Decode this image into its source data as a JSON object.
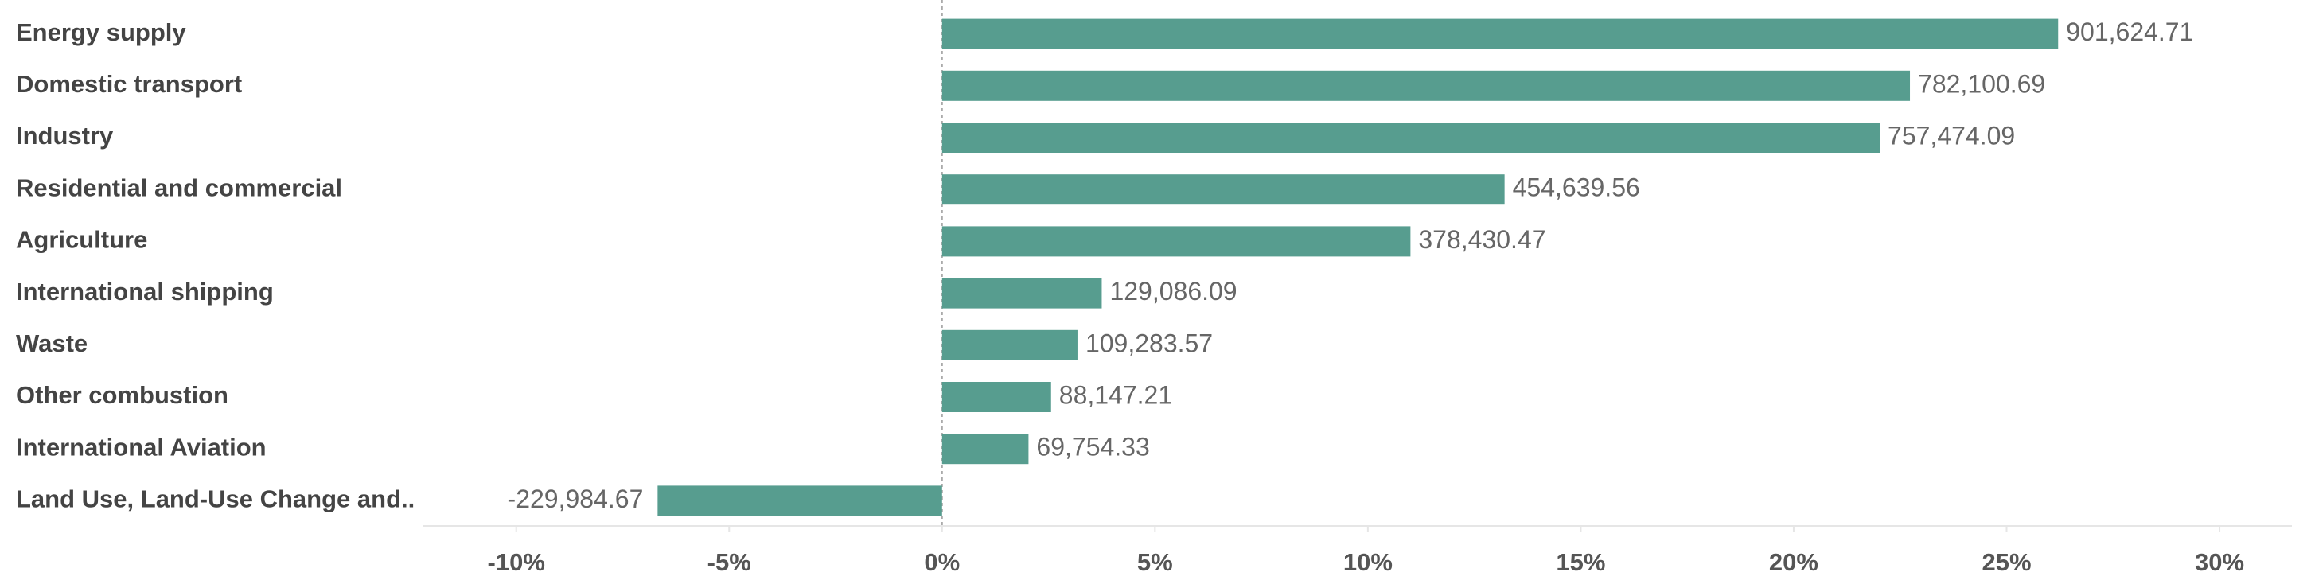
{
  "chart_data": {
    "type": "hbar",
    "categories": [
      "Energy supply",
      "Domestic transport",
      "Industry",
      "Residential and commercial",
      "Agriculture",
      "International shipping",
      "Waste",
      "Other combustion",
      "International Aviation",
      "Land Use, Land-Use Change and.."
    ],
    "values": [
      26.21,
      22.73,
      22.02,
      13.21,
      11.0,
      3.75,
      3.18,
      2.56,
      2.03,
      -6.68
    ],
    "value_labels": [
      "901,624.71",
      "782,100.69",
      "757,474.09",
      "454,639.56",
      "378,430.47",
      "129,086.09",
      "109,283.57",
      "88,147.21",
      "69,754.33",
      "-229,984.67"
    ],
    "color": "#579d8f",
    "xlim": [
      -12.2,
      31.7
    ],
    "xticks": [
      {
        "value": -10,
        "label": "-10%"
      },
      {
        "value": -5,
        "label": "-5%"
      },
      {
        "value": 0,
        "label": "0%"
      },
      {
        "value": 5,
        "label": "5%"
      },
      {
        "value": 10,
        "label": "10%"
      },
      {
        "value": 15,
        "label": "15%"
      },
      {
        "value": 20,
        "label": "20%"
      },
      {
        "value": 25,
        "label": "25%"
      },
      {
        "value": 30,
        "label": "30%"
      }
    ],
    "grid": false
  }
}
